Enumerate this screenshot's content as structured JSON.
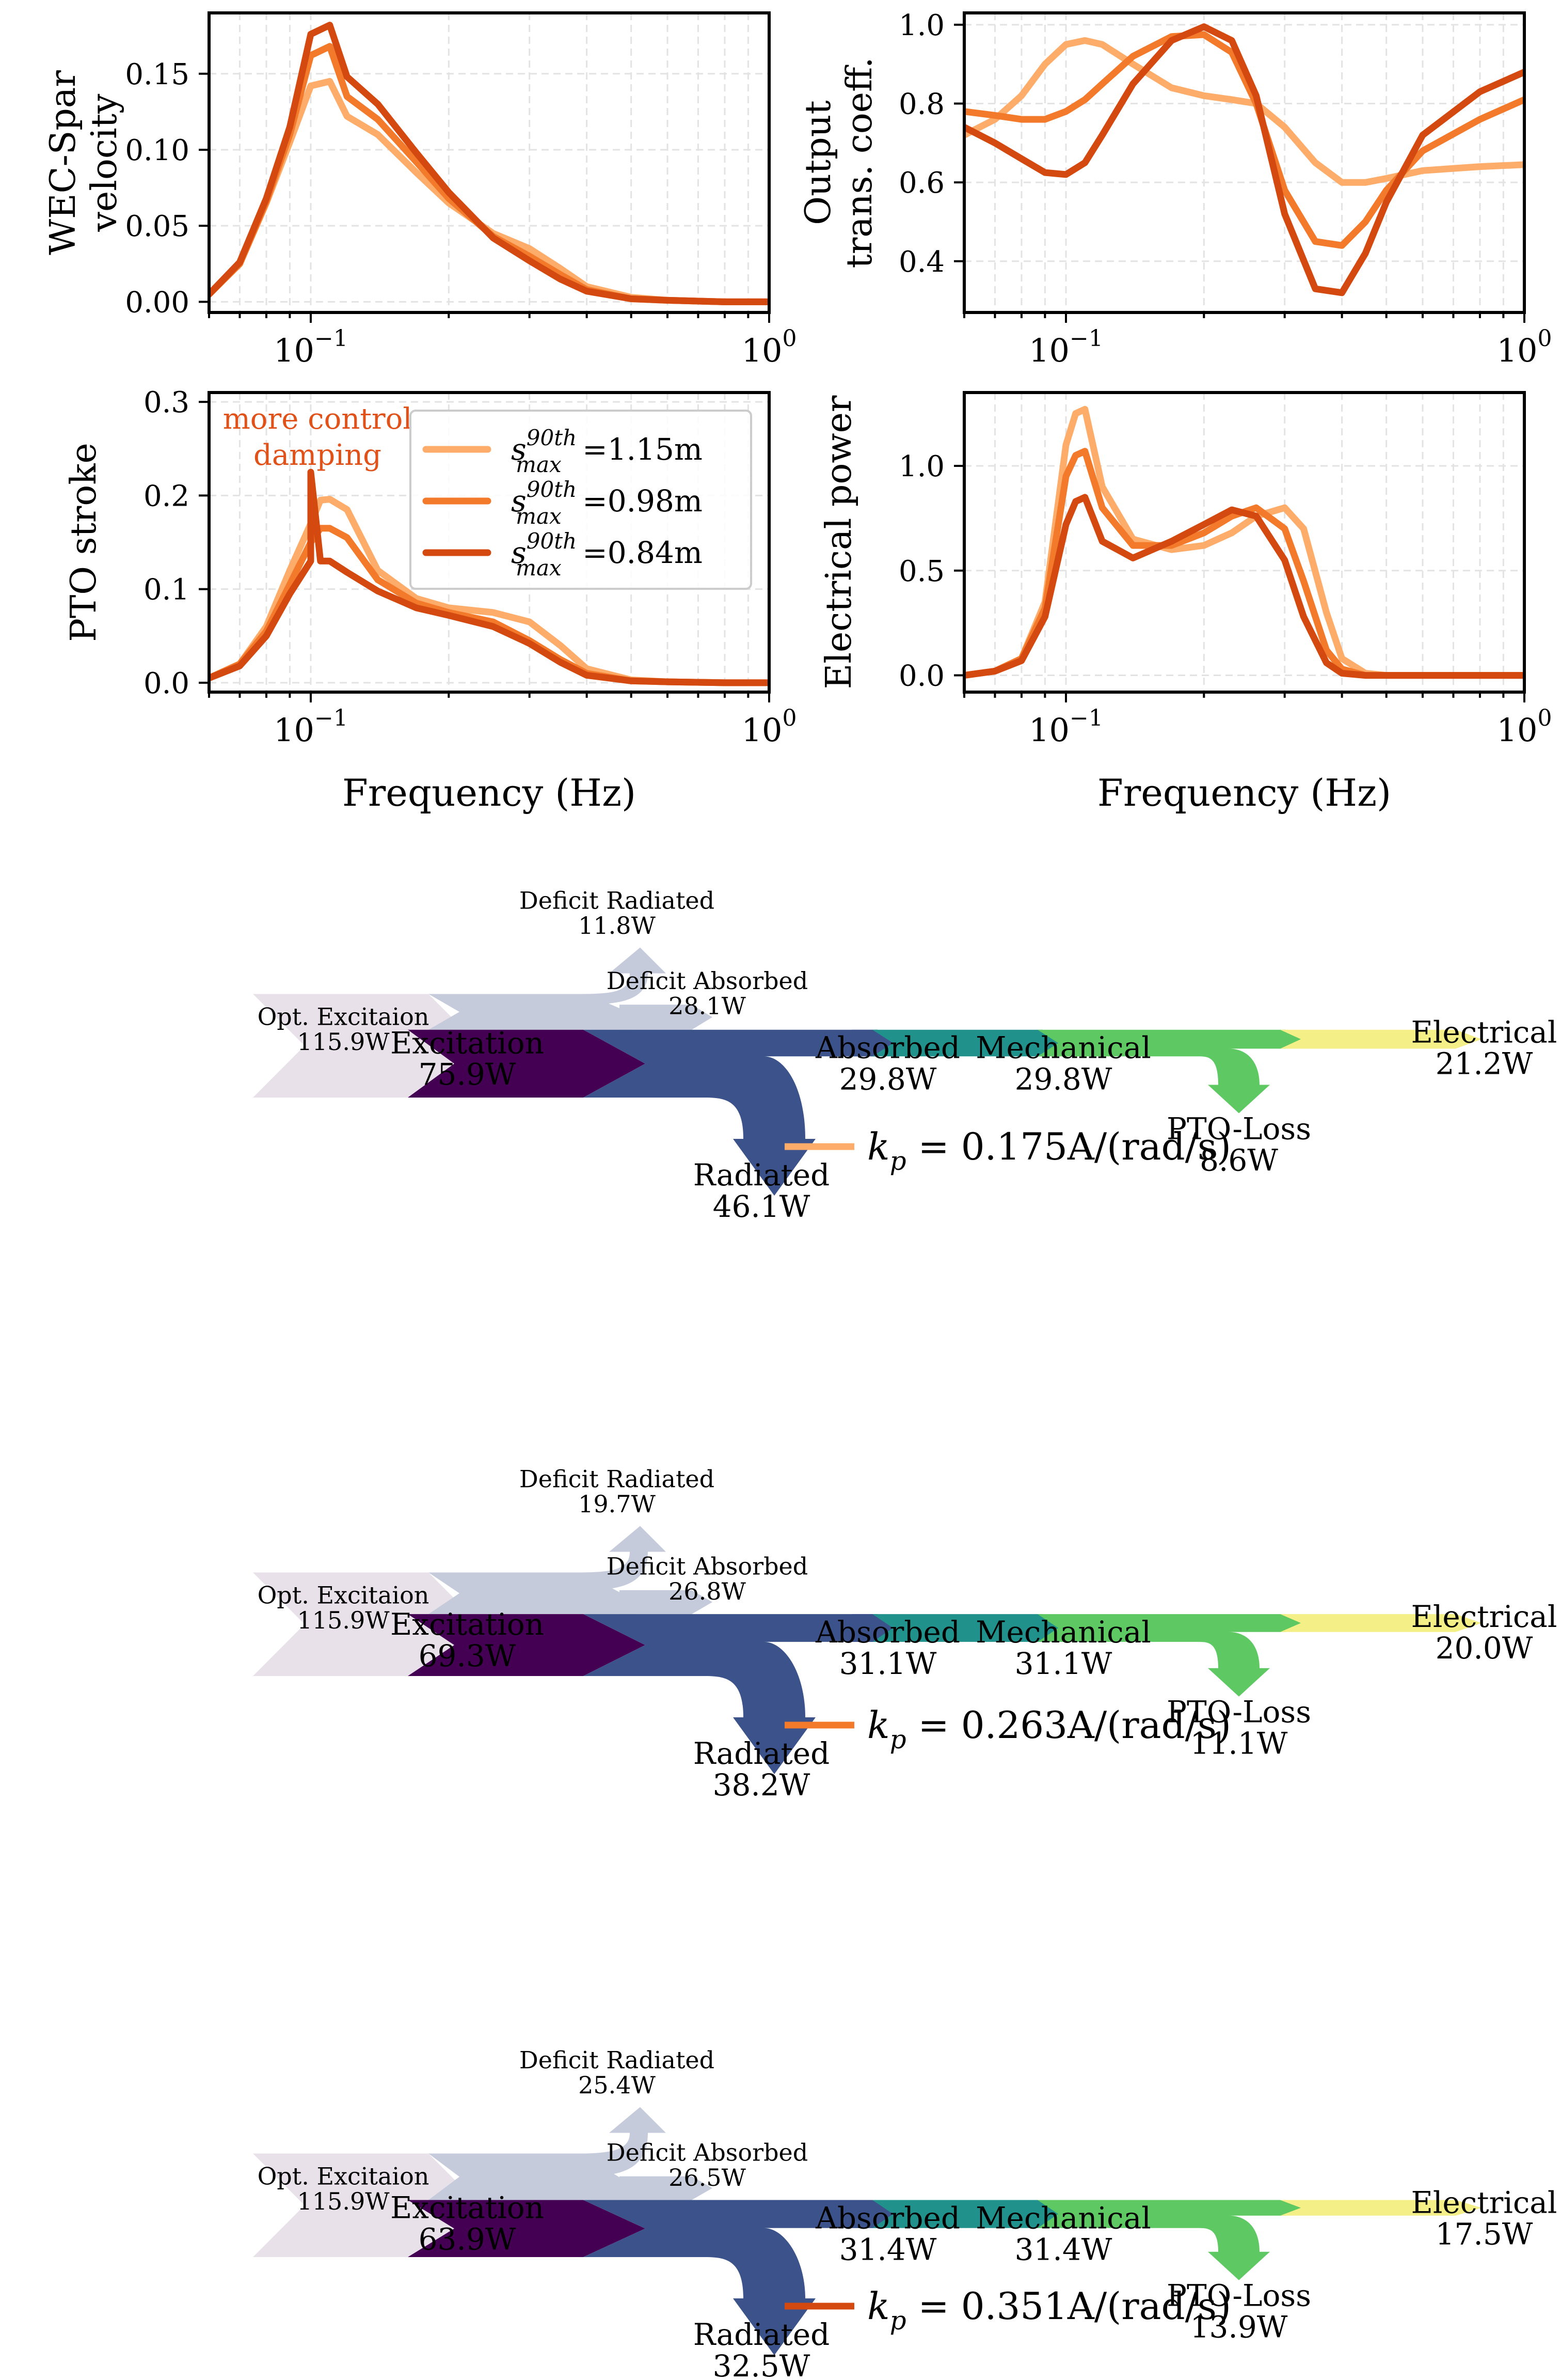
{
  "colors": {
    "light": "#fdac6a",
    "mid": "#f3792b",
    "dark": "#d44910",
    "annotation": "#e0521a"
  },
  "chart_data": [
    {
      "id": "velocity",
      "type": "line",
      "ylabel": [
        "WEC-Spar",
        "velocity"
      ],
      "xlabel": "",
      "xscale": "log",
      "xlim": [
        0.06,
        1.0
      ],
      "ylim": [
        -0.007,
        0.19
      ],
      "yticks": [
        0.0,
        0.05,
        0.1,
        0.15
      ],
      "ytick_labels": [
        "0.00",
        "0.05",
        "0.10",
        "0.15"
      ],
      "xtick_labels": [
        {
          "base": "10",
          "exp": "−1"
        },
        {
          "base": "10",
          "exp": "0"
        }
      ],
      "x": [
        0.06,
        0.07,
        0.08,
        0.09,
        0.1,
        0.11,
        0.12,
        0.14,
        0.17,
        0.2,
        0.25,
        0.3,
        0.35,
        0.4,
        0.5,
        0.6,
        0.8,
        1.0
      ],
      "series": [
        {
          "name": "s90_1.15",
          "color": "light",
          "values": [
            0.005,
            0.025,
            0.065,
            0.105,
            0.142,
            0.145,
            0.122,
            0.11,
            0.085,
            0.065,
            0.045,
            0.035,
            0.022,
            0.01,
            0.003,
            0.001,
            0.0,
            0.0
          ]
        },
        {
          "name": "s90_0.98",
          "color": "mid",
          "values": [
            0.005,
            0.025,
            0.066,
            0.11,
            0.162,
            0.168,
            0.135,
            0.12,
            0.092,
            0.068,
            0.043,
            0.03,
            0.018,
            0.008,
            0.002,
            0.001,
            0.0,
            0.0
          ]
        },
        {
          "name": "s90_0.84",
          "color": "dark",
          "values": [
            0.005,
            0.026,
            0.068,
            0.115,
            0.176,
            0.182,
            0.148,
            0.13,
            0.098,
            0.072,
            0.042,
            0.027,
            0.015,
            0.007,
            0.002,
            0.001,
            0.0,
            0.0
          ]
        }
      ]
    },
    {
      "id": "transcoeff",
      "type": "line",
      "ylabel": [
        "Output",
        "trans. coeff."
      ],
      "xlabel": "",
      "xscale": "log",
      "xlim": [
        0.06,
        1.0
      ],
      "ylim": [
        0.27,
        1.03
      ],
      "yticks": [
        0.4,
        0.6,
        0.8,
        1.0
      ],
      "ytick_labels": [
        "0.4",
        "0.6",
        "0.8",
        "1.0"
      ],
      "xtick_labels": [
        {
          "base": "10",
          "exp": "−1"
        },
        {
          "base": "10",
          "exp": "0"
        }
      ],
      "x": [
        0.06,
        0.07,
        0.08,
        0.09,
        0.1,
        0.11,
        0.12,
        0.14,
        0.17,
        0.2,
        0.23,
        0.26,
        0.3,
        0.35,
        0.4,
        0.45,
        0.5,
        0.6,
        0.8,
        1.0
      ],
      "series": [
        {
          "name": "s90_1.15",
          "color": "light",
          "values": [
            0.72,
            0.76,
            0.82,
            0.9,
            0.95,
            0.96,
            0.95,
            0.9,
            0.84,
            0.82,
            0.81,
            0.8,
            0.74,
            0.65,
            0.6,
            0.6,
            0.61,
            0.63,
            0.64,
            0.645
          ]
        },
        {
          "name": "s90_0.98",
          "color": "mid",
          "values": [
            0.78,
            0.77,
            0.76,
            0.76,
            0.78,
            0.81,
            0.85,
            0.92,
            0.97,
            0.975,
            0.93,
            0.8,
            0.58,
            0.45,
            0.44,
            0.5,
            0.58,
            0.68,
            0.76,
            0.81
          ]
        },
        {
          "name": "s90_0.84",
          "color": "dark",
          "values": [
            0.74,
            0.7,
            0.66,
            0.625,
            0.62,
            0.65,
            0.72,
            0.85,
            0.96,
            0.995,
            0.96,
            0.82,
            0.52,
            0.33,
            0.32,
            0.42,
            0.55,
            0.72,
            0.83,
            0.88
          ]
        }
      ]
    },
    {
      "id": "stroke",
      "type": "line",
      "ylabel": [
        "PTO stroke"
      ],
      "xlabel": "Frequency (Hz)",
      "xscale": "log",
      "xlim": [
        0.06,
        1.0
      ],
      "ylim": [
        -0.01,
        0.31
      ],
      "yticks": [
        0.0,
        0.1,
        0.2,
        0.3
      ],
      "ytick_labels": [
        "0.0",
        "0.1",
        "0.2",
        "0.3"
      ],
      "xtick_labels": [
        {
          "base": "10",
          "exp": "−1"
        },
        {
          "base": "10",
          "exp": "0"
        }
      ],
      "annotation": [
        "more control",
        "damping"
      ],
      "legend": {
        "location": "top-right",
        "entries": [
          {
            "color": "light",
            "sym": "s",
            "sub": "max",
            "sup": "90th",
            "value": "=1.15m"
          },
          {
            "color": "mid",
            "sym": "s",
            "sub": "max",
            "sup": "90th",
            "value": "=0.98m"
          },
          {
            "color": "dark",
            "sym": "s",
            "sub": "max",
            "sup": "90th",
            "value": "=0.84m"
          }
        ]
      },
      "x": [
        0.06,
        0.07,
        0.08,
        0.09,
        0.1,
        0.1,
        0.105,
        0.11,
        0.12,
        0.14,
        0.17,
        0.2,
        0.25,
        0.3,
        0.35,
        0.4,
        0.5,
        0.6,
        0.8,
        1.0
      ],
      "series": [
        {
          "name": "s90_1.15",
          "color": "light",
          "values": [
            0.005,
            0.02,
            0.06,
            0.12,
            0.17,
            0.17,
            0.195,
            0.196,
            0.185,
            0.12,
            0.09,
            0.08,
            0.075,
            0.065,
            0.04,
            0.015,
            0.003,
            0.001,
            0.0,
            0.0
          ]
        },
        {
          "name": "s90_0.98",
          "color": "mid",
          "values": [
            0.005,
            0.02,
            0.055,
            0.105,
            0.15,
            0.15,
            0.165,
            0.165,
            0.155,
            0.11,
            0.085,
            0.075,
            0.065,
            0.045,
            0.025,
            0.01,
            0.002,
            0.001,
            0.0,
            0.0
          ]
        },
        {
          "name": "s90_0.84",
          "color": "dark",
          "values": [
            0.005,
            0.018,
            0.05,
            0.095,
            0.13,
            0.225,
            0.13,
            0.13,
            0.118,
            0.098,
            0.08,
            0.072,
            0.06,
            0.042,
            0.022,
            0.008,
            0.002,
            0.001,
            0.0,
            0.0
          ]
        }
      ]
    },
    {
      "id": "power",
      "type": "line",
      "ylabel": [
        "Electrical power"
      ],
      "xlabel": "Frequency (Hz)",
      "xscale": "log",
      "xlim": [
        0.06,
        1.0
      ],
      "ylim": [
        -0.08,
        1.35
      ],
      "yticks": [
        0.0,
        0.5,
        1.0
      ],
      "ytick_labels": [
        "0.0",
        "0.5",
        "1.0"
      ],
      "xtick_labels": [
        {
          "base": "10",
          "exp": "−1"
        },
        {
          "base": "10",
          "exp": "0"
        }
      ],
      "x": [
        0.06,
        0.07,
        0.08,
        0.09,
        0.1,
        0.105,
        0.11,
        0.12,
        0.14,
        0.17,
        0.2,
        0.23,
        0.26,
        0.3,
        0.33,
        0.37,
        0.4,
        0.45,
        0.5,
        0.6,
        0.8,
        1.0
      ],
      "series": [
        {
          "name": "s90_1.15",
          "color": "light",
          "values": [
            0.0,
            0.02,
            0.08,
            0.35,
            1.1,
            1.25,
            1.27,
            0.9,
            0.65,
            0.6,
            0.62,
            0.68,
            0.76,
            0.8,
            0.7,
            0.3,
            0.08,
            0.01,
            0.0,
            0.0,
            0.0,
            0.0
          ]
        },
        {
          "name": "s90_0.98",
          "color": "mid",
          "values": [
            0.0,
            0.02,
            0.08,
            0.32,
            0.95,
            1.05,
            1.07,
            0.8,
            0.62,
            0.62,
            0.68,
            0.76,
            0.8,
            0.7,
            0.45,
            0.12,
            0.03,
            0.0,
            0.0,
            0.0,
            0.0,
            0.0
          ]
        },
        {
          "name": "s90_0.84",
          "color": "dark",
          "values": [
            0.0,
            0.02,
            0.07,
            0.28,
            0.72,
            0.83,
            0.85,
            0.64,
            0.56,
            0.64,
            0.72,
            0.79,
            0.76,
            0.55,
            0.28,
            0.06,
            0.01,
            0.0,
            0.0,
            0.0,
            0.0,
            0.0
          ]
        }
      ]
    },
    {
      "id": "sankey1",
      "type": "sankey",
      "kp": {
        "value": "0.175A/(rad/s)",
        "color": "light"
      },
      "flows": [
        {
          "name": "Opt. Excitaion",
          "value": "115.9W",
          "w": 115.9
        },
        {
          "name": "Excitation",
          "value": "75.9W",
          "w": 75.9
        },
        {
          "name": "Deficit Radiated",
          "value": "11.8W",
          "w": 11.8
        },
        {
          "name": "Deficit Absorbed",
          "value": "28.1W",
          "w": 28.1
        },
        {
          "name": "Radiated",
          "value": "46.1W",
          "w": 46.1
        },
        {
          "name": "Absorbed",
          "value": "29.8W",
          "w": 29.8
        },
        {
          "name": "Mechanical",
          "value": "29.8W",
          "w": 29.8
        },
        {
          "name": "PTO-Loss",
          "value": "8.6W",
          "w": 8.6
        },
        {
          "name": "Electrical",
          "value": "21.2W",
          "w": 21.2
        }
      ]
    },
    {
      "id": "sankey2",
      "type": "sankey",
      "kp": {
        "value": "0.263A/(rad/s)",
        "color": "mid"
      },
      "flows": [
        {
          "name": "Opt. Excitaion",
          "value": "115.9W",
          "w": 115.9
        },
        {
          "name": "Excitation",
          "value": "69.3W",
          "w": 69.3
        },
        {
          "name": "Deficit Radiated",
          "value": "19.7W",
          "w": 19.7
        },
        {
          "name": "Deficit Absorbed",
          "value": "26.8W",
          "w": 26.8
        },
        {
          "name": "Radiated",
          "value": "38.2W",
          "w": 38.2
        },
        {
          "name": "Absorbed",
          "value": "31.1W",
          "w": 31.1
        },
        {
          "name": "Mechanical",
          "value": "31.1W",
          "w": 31.1
        },
        {
          "name": "PTO-Loss",
          "value": "11.1W",
          "w": 11.1
        },
        {
          "name": "Electrical",
          "value": "20.0W",
          "w": 20.0
        }
      ]
    },
    {
      "id": "sankey3",
      "type": "sankey",
      "kp": {
        "value": "0.351A/(rad/s)",
        "color": "dark"
      },
      "flows": [
        {
          "name": "Opt. Excitaion",
          "value": "115.9W",
          "w": 115.9
        },
        {
          "name": "Excitation",
          "value": "63.9W",
          "w": 63.9
        },
        {
          "name": "Deficit Radiated",
          "value": "25.4W",
          "w": 25.4
        },
        {
          "name": "Deficit Absorbed",
          "value": "26.5W",
          "w": 26.5
        },
        {
          "name": "Radiated",
          "value": "32.5W",
          "w": 32.5
        },
        {
          "name": "Absorbed",
          "value": "31.4W",
          "w": 31.4
        },
        {
          "name": "Mechanical",
          "value": "31.4W",
          "w": 31.4
        },
        {
          "name": "PTO-Loss",
          "value": "13.9W",
          "w": 13.9
        },
        {
          "name": "Electrical",
          "value": "17.5W",
          "w": 17.5
        }
      ]
    }
  ]
}
